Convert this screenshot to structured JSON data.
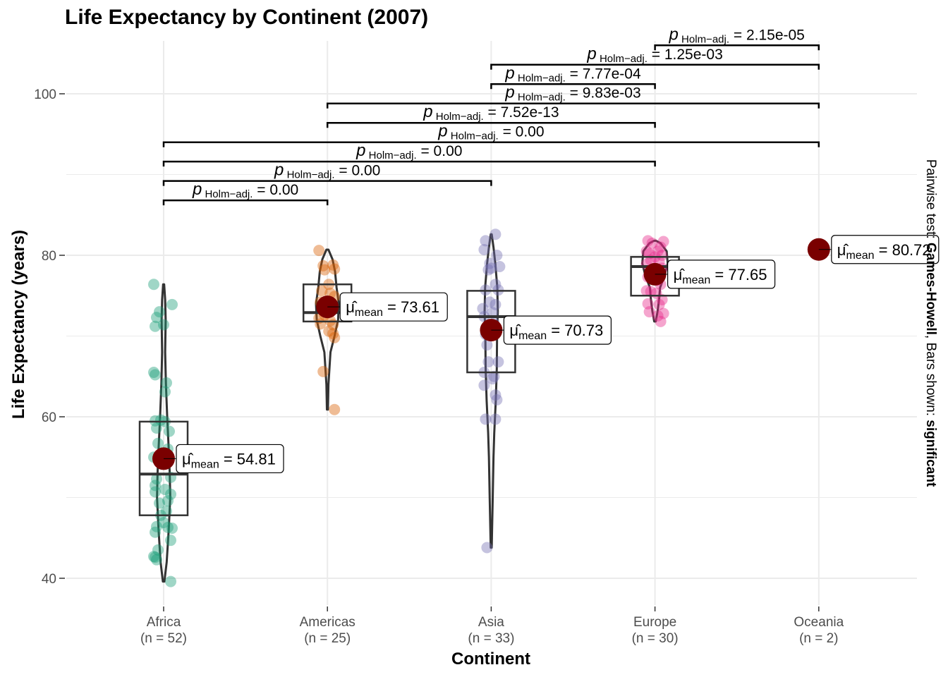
{
  "chart_data": {
    "type": "violin-box-scatter",
    "title": "Life Expectancy by Continent (2007)",
    "xlabel": "Continent",
    "ylabel": "Life Expectancy (years)",
    "ylim": [
      36,
      106
    ],
    "yticks": [
      40,
      60,
      80,
      100
    ],
    "grid": true,
    "categories": [
      {
        "name": "Africa",
        "n_label": "(n = 52)",
        "color": "#1b9e77",
        "mean": 54.81,
        "mean_label": "54.81",
        "box": {
          "q1": 47.8,
          "median": 52.9,
          "q3": 59.4
        },
        "violin": [
          [
            39.6,
            0.3
          ],
          [
            42,
            1.2
          ],
          [
            46,
            2.0
          ],
          [
            50,
            2.6
          ],
          [
            53,
            2.4
          ],
          [
            56,
            2.0
          ],
          [
            60,
            1.4
          ],
          [
            64,
            0.9
          ],
          [
            68,
            0.6
          ],
          [
            72,
            0.8
          ],
          [
            74.5,
            0.6
          ],
          [
            76.4,
            0.2
          ]
        ],
        "points": [
          [
            -14,
            76.4
          ],
          [
            12,
            73.9
          ],
          [
            -6,
            73.0
          ],
          [
            -10,
            72.3
          ],
          [
            -12,
            71.2
          ],
          [
            0,
            71.4
          ],
          [
            -14,
            65.5
          ],
          [
            -12,
            65.2
          ],
          [
            4,
            64.2
          ],
          [
            2,
            63.1
          ],
          [
            -4,
            59.6
          ],
          [
            -12,
            59.5
          ],
          [
            2,
            59.4
          ],
          [
            8,
            58.2
          ],
          [
            -10,
            58.6
          ],
          [
            -8,
            56.7
          ],
          [
            6,
            56.0
          ],
          [
            -4,
            55.3
          ],
          [
            -14,
            55.0
          ],
          [
            6,
            54.4
          ],
          [
            10,
            52.5
          ],
          [
            -10,
            52.3
          ],
          [
            -12,
            51.5
          ],
          [
            2,
            51.0
          ],
          [
            -12,
            50.7
          ],
          [
            10,
            50.4
          ],
          [
            6,
            49.6
          ],
          [
            -6,
            49.3
          ],
          [
            4,
            48.3
          ],
          [
            -4,
            47.8
          ],
          [
            0,
            46.9
          ],
          [
            -10,
            46.4
          ],
          [
            6,
            46.3
          ],
          [
            12,
            46.2
          ],
          [
            -12,
            45.7
          ],
          [
            10,
            44.7
          ],
          [
            -8,
            43.5
          ],
          [
            -12,
            42.6
          ],
          [
            -10,
            42.3
          ],
          [
            -14,
            42.7
          ],
          [
            10,
            39.6
          ]
        ]
      },
      {
        "name": "Americas",
        "n_label": "(n = 25)",
        "color": "#d95f02",
        "mean": 73.61,
        "mean_label": "73.61",
        "box": {
          "q1": 71.8,
          "median": 72.9,
          "q3": 76.4
        },
        "violin": [
          [
            60.9,
            0.2
          ],
          [
            64,
            0.4
          ],
          [
            68,
            1.2
          ],
          [
            70,
            2.8
          ],
          [
            72,
            4.2
          ],
          [
            74,
            4.5
          ],
          [
            76,
            3.6
          ],
          [
            78,
            3.0
          ],
          [
            79.5,
            2.0
          ],
          [
            80.7,
            0.4
          ]
        ],
        "points": [
          [
            -12,
            80.6
          ],
          [
            8,
            78.8
          ],
          [
            -6,
            78.7
          ],
          [
            10,
            78.3
          ],
          [
            -4,
            78.2
          ],
          [
            2,
            76.4
          ],
          [
            -8,
            75.6
          ],
          [
            4,
            75.3
          ],
          [
            10,
            74.9
          ],
          [
            -10,
            74.2
          ],
          [
            6,
            73.7
          ],
          [
            0,
            72.9
          ],
          [
            -4,
            72.6
          ],
          [
            -12,
            72.2
          ],
          [
            4,
            71.9
          ],
          [
            8,
            71.4
          ],
          [
            -10,
            71.5
          ],
          [
            2,
            70.6
          ],
          [
            8,
            70.3
          ],
          [
            10,
            69.8
          ],
          [
            -6,
            65.6
          ],
          [
            10,
            60.9
          ]
        ]
      },
      {
        "name": "Asia",
        "n_label": "(n = 33)",
        "color": "#7570b3",
        "mean": 70.73,
        "mean_label": "70.73",
        "box": {
          "q1": 65.5,
          "median": 72.4,
          "q3": 75.6
        },
        "violin": [
          [
            43.8,
            0.2
          ],
          [
            50,
            0.6
          ],
          [
            55,
            0.9
          ],
          [
            58,
            1.2
          ],
          [
            62,
            1.8
          ],
          [
            66,
            2.2
          ],
          [
            70,
            2.3
          ],
          [
            73,
            2.6
          ],
          [
            76,
            2.4
          ],
          [
            79,
            1.6
          ],
          [
            81,
            0.9
          ],
          [
            82.6,
            0.2
          ]
        ],
        "points": [
          [
            6,
            82.6
          ],
          [
            -8,
            81.8
          ],
          [
            -10,
            80.7
          ],
          [
            8,
            80.0
          ],
          [
            -2,
            79.0
          ],
          [
            12,
            78.6
          ],
          [
            0,
            78.4
          ],
          [
            -4,
            78.2
          ],
          [
            6,
            76.4
          ],
          [
            10,
            75.7
          ],
          [
            -8,
            75.7
          ],
          [
            -2,
            74.2
          ],
          [
            6,
            73.9
          ],
          [
            -12,
            73.4
          ],
          [
            2,
            72.9
          ],
          [
            -10,
            72.4
          ],
          [
            4,
            71.6
          ],
          [
            6,
            70.9
          ],
          [
            -8,
            70.2
          ],
          [
            -6,
            68.9
          ],
          [
            10,
            66.8
          ],
          [
            -4,
            66.8
          ],
          [
            -10,
            65.5
          ],
          [
            4,
            65.0
          ],
          [
            -10,
            63.9
          ],
          [
            2,
            64.7
          ],
          [
            6,
            62.7
          ],
          [
            8,
            62.1
          ],
          [
            -8,
            59.7
          ],
          [
            6,
            59.7
          ],
          [
            -6,
            43.8
          ]
        ]
      },
      {
        "name": "Europe",
        "n_label": "(n = 30)",
        "color": "#e7298a",
        "mean": 77.65,
        "mean_label": "77.65",
        "box": {
          "q1": 75.0,
          "median": 78.6,
          "q3": 79.8
        },
        "violin": [
          [
            71.8,
            0.3
          ],
          [
            73,
            1.0
          ],
          [
            74.5,
            1.6
          ],
          [
            76,
            2.0
          ],
          [
            77.5,
            3.8
          ],
          [
            79,
            5.0
          ],
          [
            80.5,
            4.6
          ],
          [
            81.5,
            2.2
          ],
          [
            81.8,
            0.4
          ]
        ],
        "points": [
          [
            -10,
            81.8
          ],
          [
            12,
            81.7
          ],
          [
            -4,
            81.5
          ],
          [
            8,
            81.0
          ],
          [
            -12,
            80.5
          ],
          [
            4,
            80.5
          ],
          [
            -8,
            80.2
          ],
          [
            10,
            80.0
          ],
          [
            0,
            79.8
          ],
          [
            -6,
            79.4
          ],
          [
            6,
            79.2
          ],
          [
            -12,
            78.9
          ],
          [
            10,
            78.4
          ],
          [
            2,
            78.1
          ],
          [
            -4,
            77.9
          ],
          [
            -10,
            77.3
          ],
          [
            4,
            76.9
          ],
          [
            8,
            76.4
          ],
          [
            -12,
            75.6
          ],
          [
            -6,
            75.5
          ],
          [
            2,
            75.3
          ],
          [
            10,
            74.5
          ],
          [
            -10,
            74.0
          ],
          [
            6,
            73.9
          ],
          [
            -8,
            73.0
          ],
          [
            12,
            72.8
          ],
          [
            4,
            72.5
          ],
          [
            8,
            71.8
          ]
        ]
      },
      {
        "name": "Oceania",
        "n_label": "(n = 2)",
        "color": "#66a61e",
        "mean": 80.72,
        "mean_label": "80.72",
        "box": {
          "q1": 80.5,
          "median": 80.7,
          "q3": 81.0
        },
        "violin": [
          [
            80.2,
            0.2
          ],
          [
            80.5,
            1.0
          ],
          [
            80.7,
            2.2
          ],
          [
            81.0,
            1.0
          ],
          [
            81.2,
            0.2
          ]
        ],
        "points": []
      }
    ],
    "pairwise": [
      {
        "from": 0,
        "to": 1,
        "y": 86.8,
        "value": "0.00"
      },
      {
        "from": 0,
        "to": 2,
        "y": 89.2,
        "value": "0.00"
      },
      {
        "from": 0,
        "to": 3,
        "y": 91.6,
        "value": "0.00"
      },
      {
        "from": 0,
        "to": 4,
        "y": 94.0,
        "value": "0.00"
      },
      {
        "from": 1,
        "to": 3,
        "y": 96.4,
        "value": "7.52e-13"
      },
      {
        "from": 1,
        "to": 4,
        "y": 98.8,
        "value": "9.83e-03"
      },
      {
        "from": 2,
        "to": 3,
        "y": 101.2,
        "value": "7.77e-04"
      },
      {
        "from": 2,
        "to": 4,
        "y": 103.6,
        "value": "1.25e-03"
      },
      {
        "from": 3,
        "to": 4,
        "y": 106.0,
        "value": "2.15e-05"
      }
    ],
    "p_symbol": "p",
    "p_subscript": "Holm−adj.",
    "mean_symbol": "μ̂",
    "mean_subscript": "mean",
    "right_caption": {
      "prefix": "Pairwise test: ",
      "test": "Games-Howell",
      "middle": ", Bars shown: ",
      "shown": "significant"
    },
    "colors": {
      "mean_point": "#7a0000",
      "box": "#333333",
      "grid": "#ebebeb",
      "axis_text": "#4d4d4d"
    }
  }
}
